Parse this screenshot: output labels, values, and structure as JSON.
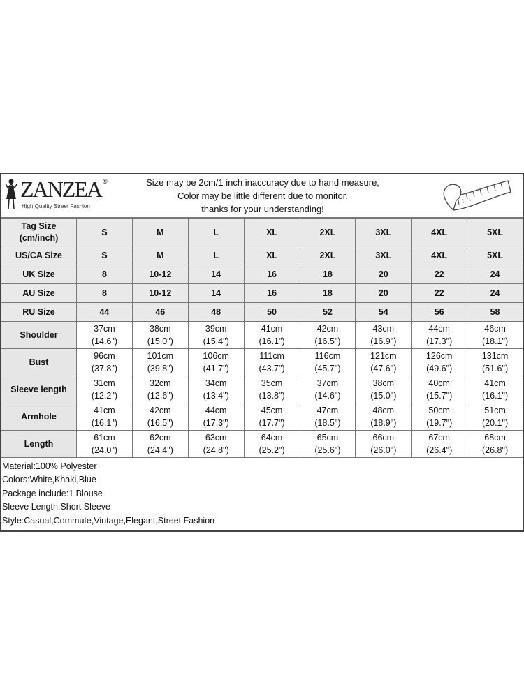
{
  "header": {
    "brand": "ZANZEA",
    "registered": "®",
    "tagline": "High Quality Street Fashion",
    "notice": [
      "Size may be 2cm/1 inch inaccuracy due to hand measure,",
      "Color may be little different due to monitor,",
      "thanks for your understanding!"
    ],
    "icon": "measuring-tape-icon"
  },
  "sizes": {
    "tag_label": [
      "Tag Size",
      "(cm/inch)"
    ],
    "rows": [
      {
        "label": "Tag Size",
        "values": [
          "S",
          "M",
          "L",
          "XL",
          "2XL",
          "3XL",
          "4XL",
          "5XL"
        ]
      },
      {
        "label": "US/CA Size",
        "values": [
          "S",
          "M",
          "L",
          "XL",
          "2XL",
          "3XL",
          "4XL",
          "5XL"
        ]
      },
      {
        "label": "UK Size",
        "values": [
          "8",
          "10-12",
          "14",
          "16",
          "18",
          "20",
          "22",
          "24"
        ]
      },
      {
        "label": "AU Size",
        "values": [
          "8",
          "10-12",
          "14",
          "16",
          "18",
          "20",
          "22",
          "24"
        ]
      },
      {
        "label": "RU Size",
        "values": [
          "44",
          "46",
          "48",
          "50",
          "52",
          "54",
          "56",
          "58"
        ]
      }
    ]
  },
  "measurements": [
    {
      "label": "Shoulder",
      "cm": [
        "37cm",
        "38cm",
        "39cm",
        "41cm",
        "42cm",
        "43cm",
        "44cm",
        "46cm"
      ],
      "inch": [
        "(14.6\")",
        "(15.0\")",
        "(15.4\")",
        "(16.1\")",
        "(16.5\")",
        "(16.9\")",
        "(17.3\")",
        "(18.1\")"
      ]
    },
    {
      "label": "Bust",
      "cm": [
        "96cm",
        "101cm",
        "106cm",
        "111cm",
        "116cm",
        "121cm",
        "126cm",
        "131cm"
      ],
      "inch": [
        "(37.8\")",
        "(39.8\")",
        "(41.7\")",
        "(43.7\")",
        "(45.7\")",
        "(47.6\")",
        "(49.6\")",
        "(51.6\")"
      ]
    },
    {
      "label": "Sleeve length",
      "cm": [
        "31cm",
        "32cm",
        "34cm",
        "35cm",
        "37cm",
        "38cm",
        "40cm",
        "41cm"
      ],
      "inch": [
        "(12.2\")",
        "(12.6\")",
        "(13.4\")",
        "(13.8\")",
        "(14.6\")",
        "(15.0\")",
        "(15.7\")",
        "(16.1\")"
      ]
    },
    {
      "label": "Armhole",
      "cm": [
        "41cm",
        "42cm",
        "44cm",
        "45cm",
        "47cm",
        "48cm",
        "50cm",
        "51cm"
      ],
      "inch": [
        "(16.1\")",
        "(16.5\")",
        "(17.3\")",
        "(17.7\")",
        "(18.5\")",
        "(18.9\")",
        "(19.7\")",
        "(20.1\")"
      ]
    },
    {
      "label": "Length",
      "cm": [
        "61cm",
        "62cm",
        "63cm",
        "64cm",
        "65cm",
        "66cm",
        "67cm",
        "68cm"
      ],
      "inch": [
        "(24.0\")",
        "(24.4\")",
        "(24.8\")",
        "(25.2\")",
        "(25.6\")",
        "(26.0\")",
        "(26.4\")",
        "(26.8\")"
      ]
    }
  ],
  "notes": [
    "Material:100% Polyester",
    "Colors:White,Khaki,Blue",
    "Package include:1 Blouse",
    "Sleeve Length:Short Sleeve",
    "Style:Casual,Commute,Vintage,Elegant,Street Fashion"
  ]
}
